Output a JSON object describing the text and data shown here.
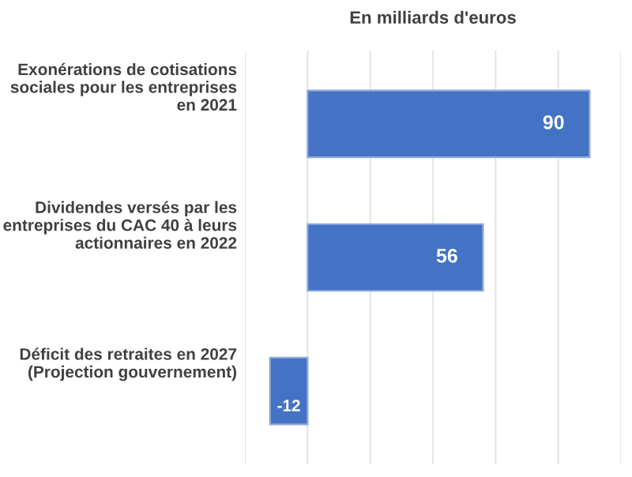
{
  "chart_data": {
    "type": "bar",
    "orientation": "horizontal",
    "title": "En milliards d'euros",
    "categories": [
      "Exonérations de cotisations sociales pour les entreprises en 2021",
      "Dividendes versés par les entreprises du CAC 40 à leurs actionnaires en 2022",
      "Déficit des retraites en 2027 (Projection gouvernement)"
    ],
    "values": [
      90,
      56,
      -12
    ],
    "color": "#4472c4",
    "data_labels": true,
    "xlim": [
      -20,
      100
    ],
    "xticks": [
      {
        "value": -20,
        "label": null
      },
      {
        "value": 0,
        "label": null
      },
      {
        "value": 20,
        "label": null
      },
      {
        "value": 40,
        "label": null
      },
      {
        "value": 60,
        "label": null
      },
      {
        "value": 80,
        "label": null
      },
      {
        "value": 100,
        "label": null
      }
    ],
    "grid": "x"
  }
}
